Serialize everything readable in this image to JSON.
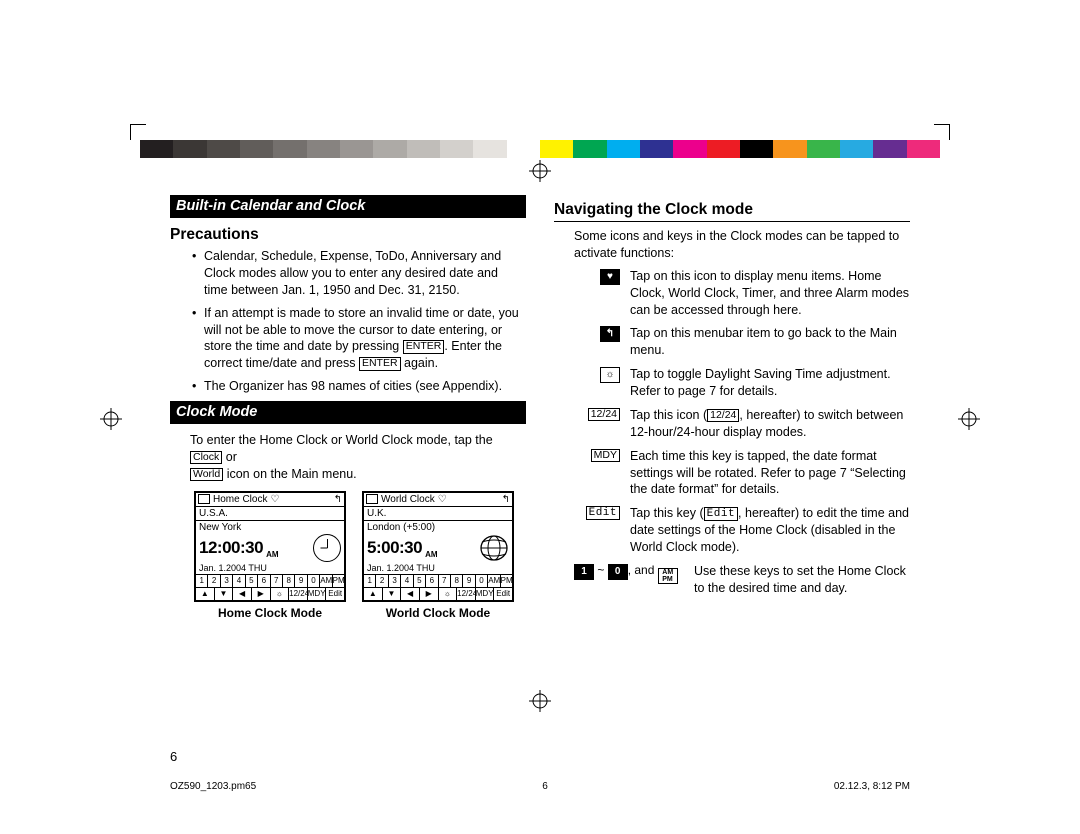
{
  "strip": {
    "left_colors": [
      "#231f20",
      "#3b3735",
      "#4e4a47",
      "#615d5a",
      "#74706d",
      "#878380",
      "#9a9693",
      "#adaaa6",
      "#c0bdb9",
      "#d3d0cc",
      "#e6e3df",
      "#ffffff"
    ],
    "right_colors": [
      "#fff200",
      "#00a651",
      "#00aeef",
      "#2e3192",
      "#ec008c",
      "#ed1c24",
      "#000000",
      "#f7941d",
      "#39b54a",
      "#27aae1",
      "#662d91",
      "#ee2a7b"
    ],
    "gap_color": "#ffffff"
  },
  "banners": {
    "calendar": "Built-in Calendar and  Clock",
    "clockmode": "Clock Mode"
  },
  "sections": {
    "precautions": "Precautions",
    "navigating": "Navigating the Clock mode"
  },
  "precaution_items": [
    "Calendar, Schedule, Expense, ToDo, Anniversary and Clock modes allow you to enter any desired date and time between Jan. 1, 1950 and Dec. 31, 2150.",
    "If an attempt is made to store an invalid time or date, you will not be able to move the cursor to date entering, or store the time and date by pressing ",
    "The Organizer has 98 names of cities (see Appendix)."
  ],
  "precaution_item2_mid": ". Enter the correct time/date and press ",
  "precaution_item2_end": " again.",
  "enter_label": "ENTER",
  "clockmode_intro_pre": "To enter the Home Clock or World Clock mode, tap the ",
  "clockmode_intro_mid": " or ",
  "clockmode_intro_post": " icon on the Main menu.",
  "key_clock": "Clock",
  "key_world": "World",
  "nav_intro": "Some icons and keys in the Clock modes can be tapped to activate functions:",
  "defs": [
    {
      "icon": "heart",
      "label": "",
      "text": "Tap on this icon to display menu items. Home Clock, World Clock, Timer, and three Alarm modes can be accessed through here."
    },
    {
      "icon": "back",
      "label": "",
      "text": "Tap on this menubar item to go back to the Main menu."
    },
    {
      "icon": "dst",
      "label": "",
      "text": "Tap to toggle Daylight Saving Time adjustment. Refer to page 7 for details."
    },
    {
      "icon": "box",
      "label": "12/24",
      "text_pre": "Tap this icon (",
      "text_mid": ", hereafter) to switch between 12-hour/24-hour display modes.",
      "inline": "12/24"
    },
    {
      "icon": "box",
      "label": "MDY",
      "text": "Each time this key is tapped, the date format settings will be rotated. Refer to page 7 “Selecting the date format” for details."
    },
    {
      "icon": "box",
      "label": "Edit",
      "text_pre": "Tap this key (",
      "text_mid": ", hereafter) to edit the time and date settings of the Home Clock (disabled in the World Clock mode).",
      "inline": "Edit"
    },
    {
      "icon": "range",
      "label": "",
      "text": "Use these keys to set the Home Clock to the desired time and day."
    }
  ],
  "range_parts": {
    "one": "1",
    "tilde": "~",
    "zero": "0",
    "comma": ", and",
    "ampm": "AM\nPM"
  },
  "lcd": {
    "home": {
      "title": "Home Clock",
      "country": "U.S.A.",
      "city": "New York",
      "time": "12:00:30",
      "ampm": "AM",
      "date": "Jan. 1.2004 THU",
      "caption": "Home Clock Mode"
    },
    "world": {
      "title": "World Clock",
      "country": "U.K.",
      "city": "London (+5:00)",
      "time": "5:00:30",
      "ampm": "AM",
      "date": "Jan. 1.2004 THU",
      "caption": "World Clock Mode"
    },
    "numrow": [
      "1",
      "2",
      "3",
      "4",
      "5",
      "6",
      "7",
      "8",
      "9",
      "0",
      "AM",
      "PM"
    ],
    "btmrow": [
      "▲",
      "▼",
      "◀",
      "▶",
      "☼",
      "12/24",
      "MDY",
      "Edit"
    ]
  },
  "pagenum": "6",
  "footer": {
    "file": "OZ590_1203.pm65",
    "page": "6",
    "timestamp": "02.12.3, 8:12 PM"
  }
}
